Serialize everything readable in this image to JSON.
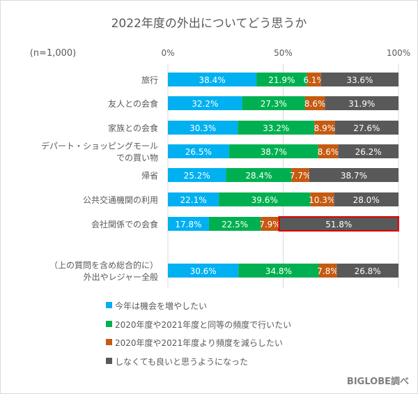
{
  "chart_data": {
    "type": "bar",
    "orientation": "horizontal",
    "stacked": true,
    "title": "2022年度の外出についてどう思うか",
    "sample_note": "(n=1,000)",
    "xlim": [
      0,
      100
    ],
    "xticks": [
      "0%",
      "50%",
      "100%"
    ],
    "grid": true,
    "legend_position": "bottom",
    "categories": [
      "旅行",
      "友人との会食",
      "家族との会食",
      "デパート・ショッピングモール\nでの買い物",
      "帰省",
      "公共交通機関の利用",
      "会社関係での会食",
      "（上の質問を含め総合的に）\n外出やレジャー全般"
    ],
    "series": [
      {
        "name": "今年は機会を増やしたい",
        "color": "#00b0f0",
        "values": [
          38.4,
          32.2,
          30.3,
          26.5,
          25.2,
          22.1,
          17.8,
          30.6
        ]
      },
      {
        "name": "2020年度や2021年度と同等の頻度で行いたい",
        "color": "#00b050",
        "values": [
          21.9,
          27.3,
          33.2,
          38.7,
          28.4,
          39.6,
          22.5,
          34.8
        ]
      },
      {
        "name": "2020年度や2021年度より頻度を減らしたい",
        "color": "#c55a11",
        "values": [
          6.1,
          8.6,
          8.9,
          8.6,
          7.7,
          10.3,
          7.9,
          7.8
        ]
      },
      {
        "name": "しなくても良いと思うようになった",
        "color": "#595959",
        "values": [
          33.6,
          31.9,
          27.6,
          26.2,
          38.7,
          28.0,
          51.8,
          26.8
        ]
      }
    ],
    "highlight": {
      "category_index": 6,
      "series_index": 3,
      "color": "#e00000"
    },
    "source": "BIGLOBE調べ"
  }
}
